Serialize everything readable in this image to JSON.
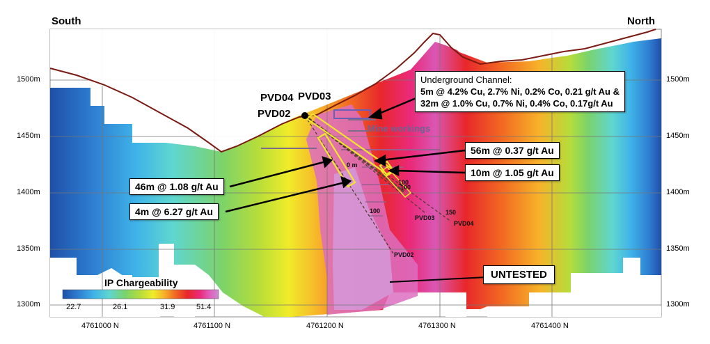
{
  "header": {
    "left": "South",
    "right": "North"
  },
  "y_axis": {
    "ticks": [
      "1500m",
      "1450m",
      "1400m",
      "1350m",
      "1300m"
    ]
  },
  "x_axis": {
    "ticks": [
      "4761000 N",
      "4761100 N",
      "4761200 N",
      "4761300 N",
      "4761400 N"
    ]
  },
  "drill_labels": {
    "pvd04": "PVD04",
    "pvd03": "PVD03",
    "pvd02": "PVD02"
  },
  "drill_trace_labels": {
    "pvd03": "PVD03",
    "pvd04": "PVD04",
    "pvd02": "PVD02"
  },
  "depth_marks": [
    "100",
    "100",
    "150",
    "100",
    "0 m"
  ],
  "mine_workings": "Mine workings",
  "callouts": {
    "channel_title": "Underground Channel:",
    "channel_line1": "5m @ 4.2% Cu, 2.7% Ni, 0.2% Co, 0.21 g/t Au  &",
    "channel_line2": "32m @ 1.0% Cu, 0.7% Ni, 0.4% Co, 0.17g/t Au",
    "intercept_56m": "56m @ 0.37 g/t Au",
    "intercept_10m": "10m @ 1.05 g/t Au",
    "intercept_46m": "46m @ 1.08 g/t Au",
    "intercept_4m": "4m @ 6.27 g/t Au",
    "untested": "UNTESTED"
  },
  "legend": {
    "title": "IP Chargeability",
    "ticks": [
      "22.7",
      "26.1",
      "31.9",
      "51.4"
    ],
    "colors": [
      "#1f4fa8",
      "#2e7ed1",
      "#3fb3e8",
      "#5fd6d0",
      "#7bd36b",
      "#b6dd3a",
      "#f0ec2a",
      "#f7b22a",
      "#f26a22",
      "#e8272b",
      "#ea2a7a",
      "#e25bb8",
      "#c98cd2"
    ]
  }
}
